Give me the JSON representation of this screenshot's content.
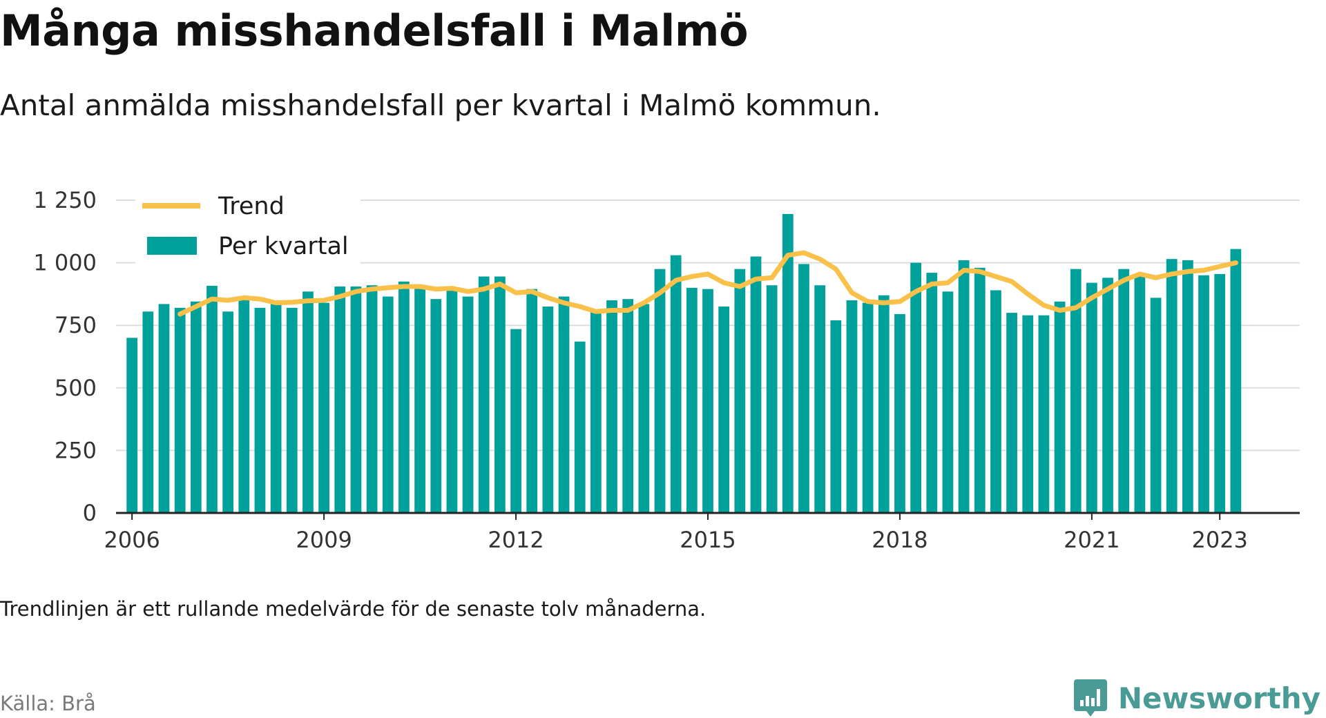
{
  "header": {
    "title": "Många misshandelsfall i Malmö",
    "subtitle": "Antal anmälda misshandelsfall per kvartal i Malmö kommun."
  },
  "footer": {
    "note": "Trendlinjen är ett rullande medelvärde för de senaste tolv månaderna.",
    "source": "Källa: Brå",
    "brand": "Newsworthy"
  },
  "colors": {
    "bars": "#00a19a",
    "trend": "#f9c14a",
    "grid": "#dddddd",
    "axis": "#222222",
    "brand": "#4a9a95"
  },
  "chart_data": {
    "type": "bar",
    "title": "Många misshandelsfall i Malmö",
    "xlabel": "",
    "ylabel": "",
    "ylim": [
      0,
      1250
    ],
    "yticks": [
      0,
      250,
      500,
      750,
      1000,
      1250
    ],
    "ytick_labels": [
      "0",
      "250",
      "500",
      "750",
      "1 000",
      "1 250"
    ],
    "xticks": [
      2006,
      2009,
      2012,
      2015,
      2018,
      2021,
      2023
    ],
    "xtick_labels": [
      "2006",
      "2009",
      "2012",
      "2015",
      "2018",
      "2021",
      "2023"
    ],
    "xlim": [
      2005.75,
      2024.25
    ],
    "grid": true,
    "legend_position": "top-left",
    "series": [
      {
        "name": "Per kvartal",
        "type": "bar",
        "x": [
          2006.0,
          2006.25,
          2006.5,
          2006.75,
          2007.0,
          2007.25,
          2007.5,
          2007.75,
          2008.0,
          2008.25,
          2008.5,
          2008.75,
          2009.0,
          2009.25,
          2009.5,
          2009.75,
          2010.0,
          2010.25,
          2010.5,
          2010.75,
          2011.0,
          2011.25,
          2011.5,
          2011.75,
          2012.0,
          2012.25,
          2012.5,
          2012.75,
          2013.0,
          2013.25,
          2013.5,
          2013.75,
          2014.0,
          2014.25,
          2014.5,
          2014.75,
          2015.0,
          2015.25,
          2015.5,
          2015.75,
          2016.0,
          2016.25,
          2016.5,
          2016.75,
          2017.0,
          2017.25,
          2017.5,
          2017.75,
          2018.0,
          2018.25,
          2018.5,
          2018.75,
          2019.0,
          2019.25,
          2019.5,
          2019.75,
          2020.0,
          2020.25,
          2020.5,
          2020.75,
          2021.0,
          2021.25,
          2021.5,
          2021.75,
          2022.0,
          2022.25,
          2022.5,
          2022.75,
          2023.0,
          2023.25
        ],
        "values": [
          700,
          805,
          835,
          820,
          845,
          908,
          805,
          855,
          820,
          835,
          820,
          885,
          840,
          905,
          905,
          910,
          865,
          925,
          910,
          855,
          890,
          865,
          945,
          945,
          735,
          895,
          825,
          865,
          685,
          805,
          850,
          855,
          835,
          975,
          1030,
          900,
          895,
          825,
          975,
          1025,
          910,
          1195,
          995,
          910,
          770,
          850,
          840,
          870,
          795,
          1000,
          960,
          885,
          1010,
          980,
          890,
          800,
          790,
          790,
          845,
          975,
          920,
          940,
          975,
          955,
          860,
          1015,
          1010,
          950,
          955,
          1055
        ]
      },
      {
        "name": "Trend",
        "type": "line",
        "x": [
          2006.75,
          2007.0,
          2007.25,
          2007.5,
          2007.75,
          2008.0,
          2008.25,
          2008.5,
          2008.75,
          2009.0,
          2009.25,
          2009.5,
          2009.75,
          2010.0,
          2010.25,
          2010.5,
          2010.75,
          2011.0,
          2011.25,
          2011.5,
          2011.75,
          2012.0,
          2012.25,
          2012.5,
          2012.75,
          2013.0,
          2013.25,
          2013.5,
          2013.75,
          2014.0,
          2014.25,
          2014.5,
          2014.75,
          2015.0,
          2015.25,
          2015.5,
          2015.75,
          2016.0,
          2016.25,
          2016.5,
          2016.75,
          2017.0,
          2017.25,
          2017.5,
          2017.75,
          2018.0,
          2018.25,
          2018.5,
          2018.75,
          2019.0,
          2019.25,
          2019.5,
          2019.75,
          2020.0,
          2020.25,
          2020.5,
          2020.75,
          2021.0,
          2021.25,
          2021.5,
          2021.75,
          2022.0,
          2022.25,
          2022.5,
          2022.75,
          2023.0,
          2023.25
        ],
        "values": [
          795,
          825,
          855,
          850,
          860,
          855,
          840,
          842,
          848,
          850,
          865,
          885,
          895,
          900,
          905,
          905,
          895,
          898,
          885,
          895,
          915,
          880,
          885,
          860,
          840,
          825,
          805,
          810,
          810,
          840,
          880,
          930,
          945,
          955,
          920,
          905,
          935,
          940,
          1030,
          1040,
          1015,
          975,
          880,
          845,
          840,
          845,
          885,
          915,
          920,
          970,
          965,
          945,
          925,
          875,
          830,
          810,
          820,
          860,
          895,
          930,
          955,
          940,
          955,
          965,
          970,
          985,
          1000
        ]
      }
    ]
  }
}
